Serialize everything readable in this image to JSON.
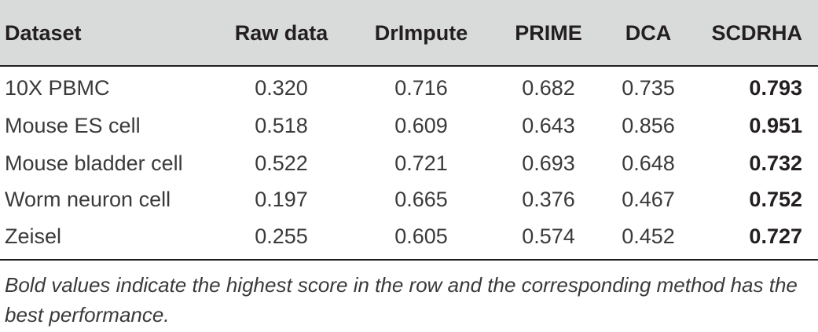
{
  "table": {
    "headers": [
      "Dataset",
      "Raw data",
      "DrImpute",
      "PRIME",
      "DCA",
      "SCDRHA"
    ],
    "rows": [
      {
        "dataset": "10X PBMC",
        "raw": "0.320",
        "drimpute": "0.716",
        "prime": "0.682",
        "dca": "0.735",
        "scdrha": "0.793"
      },
      {
        "dataset": "Mouse ES cell",
        "raw": "0.518",
        "drimpute": "0.609",
        "prime": "0.643",
        "dca": "0.856",
        "scdrha": "0.951"
      },
      {
        "dataset": "Mouse bladder cell",
        "raw": "0.522",
        "drimpute": "0.721",
        "prime": "0.693",
        "dca": "0.648",
        "scdrha": "0.732"
      },
      {
        "dataset": "Worm neuron cell",
        "raw": "0.197",
        "drimpute": "0.665",
        "prime": "0.376",
        "dca": "0.467",
        "scdrha": "0.752"
      },
      {
        "dataset": "Zeisel",
        "raw": "0.255",
        "drimpute": "0.605",
        "prime": "0.574",
        "dca": "0.452",
        "scdrha": "0.727"
      }
    ]
  },
  "footnote": "Bold values indicate the highest score in the row and the corresponding method has the best performance.",
  "colors": {
    "header_background": "#d9dbdb",
    "rule": "#231f20",
    "text": "#3a3a3a"
  }
}
